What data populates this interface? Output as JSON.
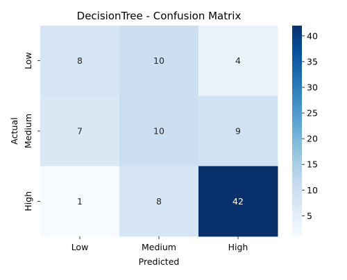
{
  "chart_data": {
    "type": "heatmap",
    "title": "DecisionTree - Confusion Matrix",
    "xlabel": "Predicted",
    "ylabel": "Actual",
    "x_categories": [
      "Low",
      "Medium",
      "High"
    ],
    "y_categories": [
      "Low",
      "Medium",
      "High"
    ],
    "values": [
      [
        8,
        10,
        4
      ],
      [
        7,
        10,
        9
      ],
      [
        1,
        8,
        42
      ]
    ],
    "colorbar": {
      "min": 1,
      "max": 42,
      "ticks": [
        5,
        10,
        15,
        20,
        25,
        30,
        35,
        40
      ],
      "colormap": "Blues"
    }
  }
}
